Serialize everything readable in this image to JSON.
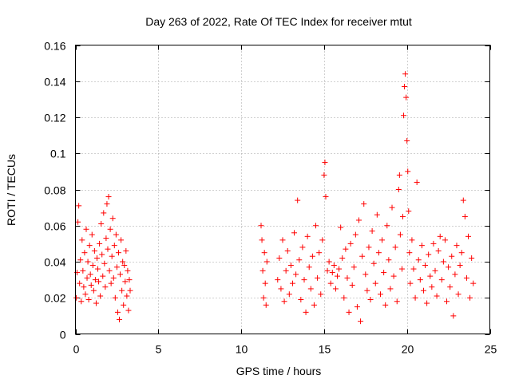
{
  "chart_data": {
    "type": "scatter",
    "title": "Day 263 of 2022, Rate Of TEC Index for receiver mtut",
    "xlabel": "GPS time / hours",
    "ylabel": "ROTI / TECUs",
    "xlim": [
      0,
      25
    ],
    "ylim": [
      0,
      0.16
    ],
    "xticks": [
      0,
      5,
      10,
      15,
      20,
      25
    ],
    "xtick_labels": [
      "0",
      "5",
      "10",
      "15",
      "20",
      "25"
    ],
    "yticks": [
      0,
      0.02,
      0.04,
      0.06,
      0.08,
      0.1,
      0.12,
      0.14,
      0.16
    ],
    "ytick_labels": [
      "0",
      "0.02",
      "0.04",
      "0.06",
      "0.08",
      "0.1",
      "0.12",
      "0.14",
      "0.16"
    ],
    "grid": true,
    "marker": "+",
    "color": "#ff0000",
    "series": [
      {
        "values": [
          [
            0.05,
            0.02
          ],
          [
            0.1,
            0.034
          ],
          [
            0.15,
            0.062
          ],
          [
            0.2,
            0.071
          ],
          [
            0.25,
            0.028
          ],
          [
            0.3,
            0.041
          ],
          [
            0.35,
            0.018
          ],
          [
            0.4,
            0.052
          ],
          [
            0.45,
            0.035
          ],
          [
            0.5,
            0.026
          ],
          [
            0.55,
            0.045
          ],
          [
            0.6,
            0.022
          ],
          [
            0.65,
            0.058
          ],
          [
            0.7,
            0.031
          ],
          [
            0.75,
            0.04
          ],
          [
            0.8,
            0.019
          ],
          [
            0.85,
            0.049
          ],
          [
            0.9,
            0.033
          ],
          [
            0.95,
            0.027
          ],
          [
            1.0,
            0.055
          ],
          [
            1.05,
            0.038
          ],
          [
            1.1,
            0.024
          ],
          [
            1.15,
            0.046
          ],
          [
            1.2,
            0.03
          ],
          [
            1.25,
            0.017
          ],
          [
            1.3,
            0.042
          ],
          [
            1.35,
            0.036
          ],
          [
            1.4,
            0.029
          ],
          [
            1.45,
            0.05
          ],
          [
            1.5,
            0.021
          ],
          [
            1.55,
            0.061
          ],
          [
            1.6,
            0.044
          ],
          [
            1.65,
            0.032
          ],
          [
            1.7,
            0.067
          ],
          [
            1.75,
            0.039
          ],
          [
            1.8,
            0.026
          ],
          [
            1.85,
            0.053
          ],
          [
            1.9,
            0.072
          ],
          [
            1.95,
            0.047
          ],
          [
            2.0,
            0.076
          ],
          [
            2.05,
            0.035
          ],
          [
            2.1,
            0.058
          ],
          [
            2.15,
            0.028
          ],
          [
            2.2,
            0.043
          ],
          [
            2.25,
            0.064
          ],
          [
            2.3,
            0.031
          ],
          [
            2.35,
            0.049
          ],
          [
            2.4,
            0.02
          ],
          [
            2.45,
            0.055
          ],
          [
            2.5,
            0.037
          ],
          [
            2.55,
            0.012
          ],
          [
            2.6,
            0.045
          ],
          [
            2.65,
            0.008
          ],
          [
            2.7,
            0.033
          ],
          [
            2.75,
            0.052
          ],
          [
            2.8,
            0.024
          ],
          [
            2.85,
            0.04
          ],
          [
            2.9,
            0.016
          ],
          [
            2.95,
            0.038
          ],
          [
            3.0,
            0.029
          ],
          [
            3.05,
            0.046
          ],
          [
            3.1,
            0.021
          ],
          [
            3.15,
            0.035
          ],
          [
            3.2,
            0.013
          ],
          [
            3.25,
            0.03
          ],
          [
            3.3,
            0.024
          ],
          [
            11.2,
            0.06
          ],
          [
            11.25,
            0.052
          ],
          [
            11.3,
            0.035
          ],
          [
            11.35,
            0.02
          ],
          [
            11.4,
            0.045
          ],
          [
            11.45,
            0.028
          ],
          [
            11.5,
            0.016
          ],
          [
            11.55,
            0.04
          ],
          [
            12.2,
            0.03
          ],
          [
            12.3,
            0.042
          ],
          [
            12.4,
            0.025
          ],
          [
            12.5,
            0.052
          ],
          [
            12.6,
            0.018
          ],
          [
            12.7,
            0.035
          ],
          [
            12.8,
            0.046
          ],
          [
            12.9,
            0.022
          ],
          [
            13.0,
            0.038
          ],
          [
            13.1,
            0.028
          ],
          [
            13.2,
            0.056
          ],
          [
            13.3,
            0.033
          ],
          [
            13.4,
            0.074
          ],
          [
            13.5,
            0.041
          ],
          [
            13.6,
            0.019
          ],
          [
            13.7,
            0.048
          ],
          [
            13.8,
            0.03
          ],
          [
            13.9,
            0.012
          ],
          [
            14.0,
            0.054
          ],
          [
            14.1,
            0.037
          ],
          [
            14.2,
            0.025
          ],
          [
            14.3,
            0.043
          ],
          [
            14.4,
            0.016
          ],
          [
            14.5,
            0.06
          ],
          [
            14.6,
            0.031
          ],
          [
            14.7,
            0.045
          ],
          [
            14.8,
            0.022
          ],
          [
            14.9,
            0.052
          ],
          [
            15.0,
            0.088
          ],
          [
            15.05,
            0.095
          ],
          [
            15.1,
            0.076
          ],
          [
            15.2,
            0.035
          ],
          [
            15.3,
            0.04
          ],
          [
            15.4,
            0.028
          ],
          [
            15.5,
            0.034
          ],
          [
            15.6,
            0.038
          ],
          [
            15.7,
            0.025
          ],
          [
            15.8,
            0.032
          ],
          [
            15.9,
            0.036
          ],
          [
            16.0,
            0.059
          ],
          [
            16.1,
            0.042
          ],
          [
            16.2,
            0.02
          ],
          [
            16.3,
            0.047
          ],
          [
            16.4,
            0.031
          ],
          [
            16.5,
            0.012
          ],
          [
            16.6,
            0.05
          ],
          [
            16.7,
            0.027
          ],
          [
            16.8,
            0.037
          ],
          [
            16.9,
            0.055
          ],
          [
            17.0,
            0.015
          ],
          [
            17.1,
            0.063
          ],
          [
            17.2,
            0.007
          ],
          [
            17.3,
            0.043
          ],
          [
            17.4,
            0.072
          ],
          [
            17.5,
            0.033
          ],
          [
            17.6,
            0.024
          ],
          [
            17.7,
            0.048
          ],
          [
            17.8,
            0.019
          ],
          [
            17.9,
            0.057
          ],
          [
            18.0,
            0.039
          ],
          [
            18.1,
            0.028
          ],
          [
            18.2,
            0.066
          ],
          [
            18.3,
            0.045
          ],
          [
            18.4,
            0.022
          ],
          [
            18.5,
            0.052
          ],
          [
            18.6,
            0.034
          ],
          [
            18.7,
            0.016
          ],
          [
            18.8,
            0.06
          ],
          [
            18.9,
            0.041
          ],
          [
            19.0,
            0.025
          ],
          [
            19.1,
            0.07
          ],
          [
            19.2,
            0.032
          ],
          [
            19.3,
            0.048
          ],
          [
            19.4,
            0.018
          ],
          [
            19.5,
            0.08
          ],
          [
            19.55,
            0.088
          ],
          [
            19.6,
            0.055
          ],
          [
            19.7,
            0.036
          ],
          [
            19.75,
            0.065
          ],
          [
            19.8,
            0.121
          ],
          [
            19.85,
            0.137
          ],
          [
            19.9,
            0.144
          ],
          [
            19.95,
            0.131
          ],
          [
            20.0,
            0.107
          ],
          [
            20.05,
            0.09
          ],
          [
            20.1,
            0.068
          ],
          [
            20.15,
            0.045
          ],
          [
            20.2,
            0.028
          ],
          [
            20.3,
            0.052
          ],
          [
            20.4,
            0.036
          ],
          [
            20.5,
            0.02
          ],
          [
            20.6,
            0.084
          ],
          [
            20.7,
            0.041
          ],
          [
            20.8,
            0.03
          ],
          [
            20.9,
            0.049
          ],
          [
            21.0,
            0.024
          ],
          [
            21.1,
            0.038
          ],
          [
            21.2,
            0.017
          ],
          [
            21.3,
            0.044
          ],
          [
            21.4,
            0.032
          ],
          [
            21.5,
            0.026
          ],
          [
            21.6,
            0.05
          ],
          [
            21.7,
            0.035
          ],
          [
            21.8,
            0.021
          ],
          [
            21.9,
            0.046
          ],
          [
            22.0,
            0.054
          ],
          [
            22.1,
            0.03
          ],
          [
            22.2,
            0.04
          ],
          [
            22.3,
            0.052
          ],
          [
            22.4,
            0.018
          ],
          [
            22.5,
            0.037
          ],
          [
            22.6,
            0.026
          ],
          [
            22.7,
            0.043
          ],
          [
            22.8,
            0.01
          ],
          [
            22.9,
            0.033
          ],
          [
            23.0,
            0.049
          ],
          [
            23.1,
            0.022
          ],
          [
            23.2,
            0.038
          ],
          [
            23.3,
            0.045
          ],
          [
            23.4,
            0.074
          ],
          [
            23.5,
            0.065
          ],
          [
            23.6,
            0.031
          ],
          [
            23.7,
            0.054
          ],
          [
            23.8,
            0.02
          ],
          [
            23.9,
            0.042
          ],
          [
            24.0,
            0.028
          ]
        ]
      }
    ]
  }
}
